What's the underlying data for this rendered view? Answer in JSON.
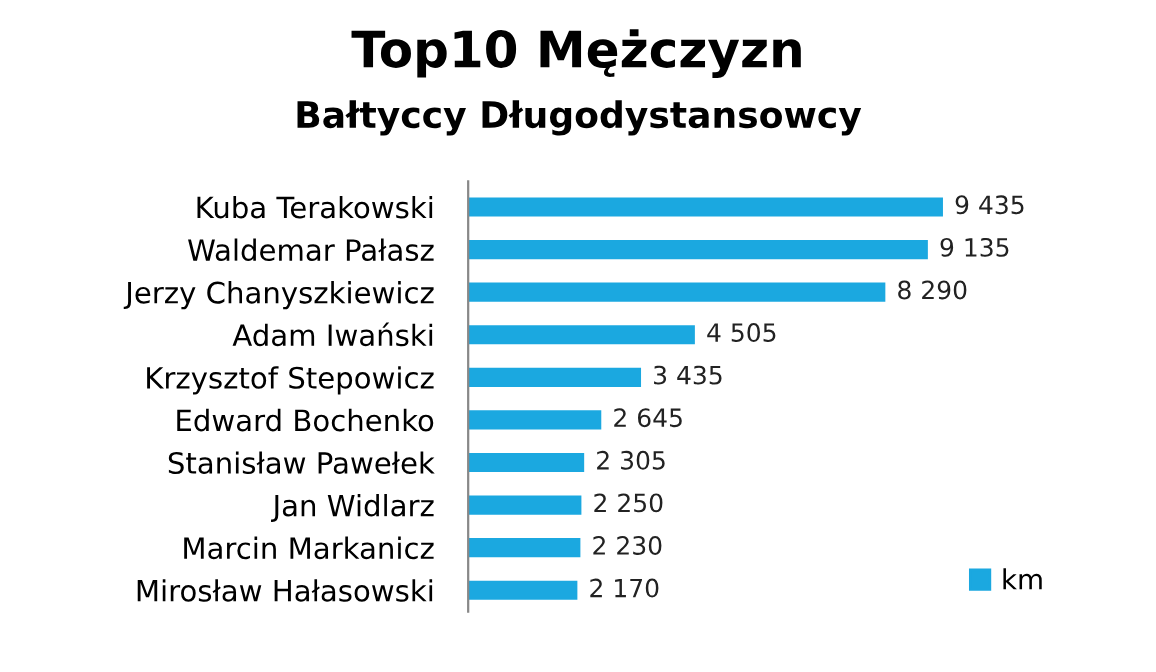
{
  "chart_data": {
    "type": "bar",
    "orientation": "horizontal",
    "title": "Top10 Mężczyzn",
    "subtitle": "Bałtyccy Długodystansowcy",
    "categories": [
      "Kuba Terakowski",
      "Waldemar Pałasz",
      "Jerzy Chanyszkiewicz",
      "Adam Iwański",
      "Krzysztof Stepowicz",
      "Edward Bochenko",
      "Stanisław Pawełek",
      "Jan Widlarz",
      "Marcin Markanicz",
      "Mirosław Hałasowski"
    ],
    "series": [
      {
        "name": "km",
        "color": "#1ba8e0",
        "values": [
          9435,
          9135,
          8290,
          4505,
          3435,
          2645,
          2305,
          2250,
          2230,
          2170
        ],
        "value_labels": [
          "9 435",
          "9 135",
          "8 290",
          "4 505",
          "3 435",
          "2 645",
          "2 305",
          "2 250",
          "2 230",
          "2 170"
        ]
      }
    ],
    "legend": "bottom right",
    "grid": false
  }
}
